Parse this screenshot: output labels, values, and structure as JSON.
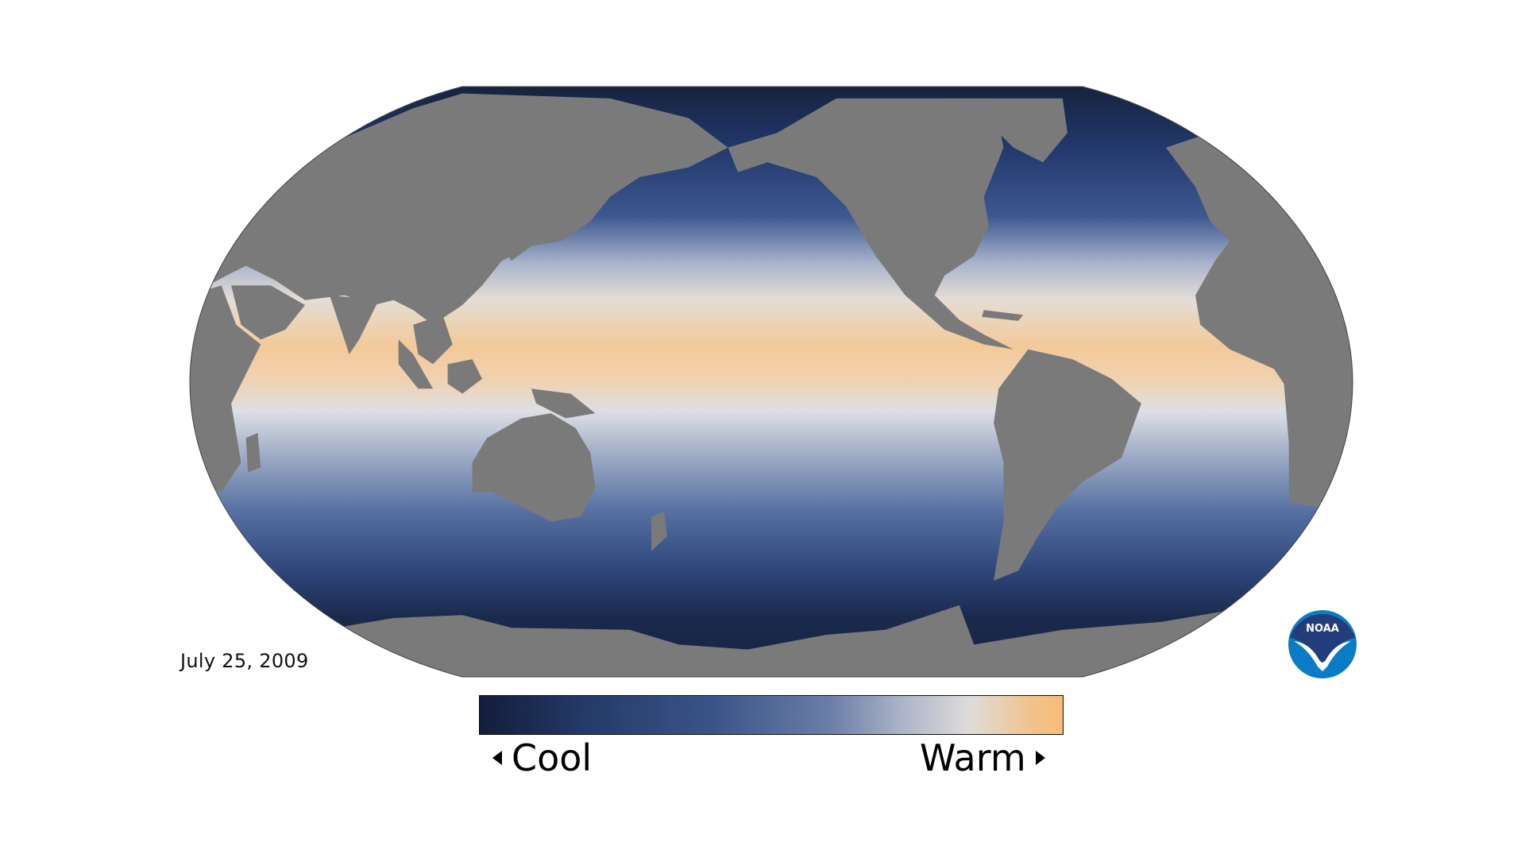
{
  "date": "July 25, 2009",
  "legend": {
    "low_label": "Cool",
    "high_label": "Warm",
    "colors": [
      "#131d3a",
      "#243a68",
      "#3b5488",
      "#6a7ea6",
      "#a9b2c7",
      "#dedcda",
      "#f8bb78"
    ]
  },
  "logo": {
    "text": "NOAA",
    "colors": {
      "top": "#233d7a",
      "bottom": "#0a7cc6"
    }
  },
  "map": {
    "land_color": "#7a7a7a",
    "projection": "Robinson, Pacific-centered",
    "variable": "sea surface temperature"
  }
}
